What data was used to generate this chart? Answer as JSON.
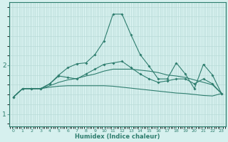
{
  "xlabel": "Humidex (Indice chaleur)",
  "x": [
    0,
    1,
    2,
    3,
    4,
    5,
    6,
    7,
    8,
    9,
    10,
    11,
    12,
    13,
    14,
    15,
    16,
    17,
    18,
    19,
    20,
    21,
    22,
    23
  ],
  "line1_marked": [
    1.35,
    1.52,
    1.52,
    1.52,
    1.62,
    1.8,
    1.95,
    2.03,
    2.05,
    2.22,
    2.5,
    3.05,
    3.05,
    2.62,
    2.22,
    1.98,
    1.72,
    1.72,
    2.05,
    1.82,
    1.52,
    2.02,
    1.8,
    1.42
  ],
  "line2_marked": [
    1.35,
    1.52,
    1.52,
    1.52,
    1.62,
    1.78,
    1.75,
    1.72,
    1.82,
    1.92,
    2.02,
    2.05,
    2.08,
    1.95,
    1.82,
    1.72,
    1.65,
    1.68,
    1.72,
    1.72,
    1.62,
    1.72,
    1.62,
    1.42
  ],
  "line3_plain": [
    1.35,
    1.52,
    1.52,
    1.52,
    1.58,
    1.65,
    1.7,
    1.73,
    1.78,
    1.82,
    1.88,
    1.92,
    1.92,
    1.92,
    1.9,
    1.88,
    1.85,
    1.8,
    1.78,
    1.75,
    1.7,
    1.65,
    1.6,
    1.42
  ],
  "line4_plain": [
    1.35,
    1.52,
    1.52,
    1.52,
    1.55,
    1.57,
    1.58,
    1.58,
    1.58,
    1.58,
    1.58,
    1.57,
    1.55,
    1.53,
    1.51,
    1.49,
    1.47,
    1.45,
    1.43,
    1.42,
    1.4,
    1.38,
    1.37,
    1.42
  ],
  "color": "#2e7d6e",
  "bg_color": "#d6f0ee",
  "grid_color": "#b8dbd8",
  "ylim": [
    0.75,
    3.3
  ],
  "yticks": [
    1,
    2
  ],
  "xlim": [
    -0.5,
    23.5
  ]
}
